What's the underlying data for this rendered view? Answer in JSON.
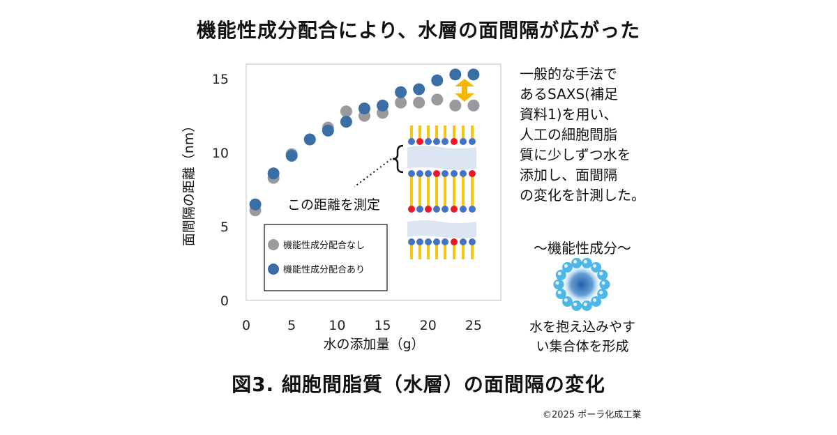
{
  "title": "機能性成分配合により、水層の面間隔が広がった",
  "caption": "図3. 細胞間脂質（水層）の面間隔の変化",
  "copyright": "©2025 ポーラ化成工業",
  "description_lines": [
    "一般的な手法で",
    "あるSAXS(補足",
    "資料1)を用い、",
    "人工の細胞間脂",
    "質に少しずつ水を",
    "添加し、面間隔",
    "の変化を計測した。"
  ],
  "component": {
    "title": "～機能性成分～",
    "desc_lines": [
      "水を抱え込みやす",
      "い集合体を形成"
    ]
  },
  "measure_label": "この距離を測定",
  "colors": {
    "series_without": "#9a9a9e",
    "series_with": "#3a6ea5",
    "lipid_tail": "#f5c518",
    "head_blue": "#4472c4",
    "head_red": "#e8192c",
    "water_layer": "#dbe6f2",
    "arrow": "#f5b800",
    "particle_outer": "#4fb6e8",
    "particle_core": "#1f5fa8"
  },
  "chart_data": {
    "type": "scatter",
    "xlabel": "水の添加量（g）",
    "ylabel": "面間隔の距離（nm）",
    "xlim": [
      0,
      28
    ],
    "ylim": [
      0,
      16
    ],
    "xticks": [
      0,
      5,
      10,
      15,
      20,
      25
    ],
    "yticks": [
      0,
      5,
      10,
      15
    ],
    "grid": false,
    "legend_position": "bottom-left",
    "series": [
      {
        "name": "機能性成分配合なし",
        "x": [
          1,
          3,
          5,
          7,
          9,
          11,
          13,
          15,
          17,
          19,
          21,
          23,
          25
        ],
        "y": [
          6.1,
          8.3,
          9.9,
          10.9,
          11.7,
          12.8,
          12.5,
          12.7,
          13.4,
          13.4,
          13.6,
          13.2,
          13.2
        ]
      },
      {
        "name": "機能性成分配合あり",
        "x": [
          1,
          3,
          5,
          7,
          9,
          11,
          13,
          15,
          17,
          19,
          21,
          23,
          25
        ],
        "y": [
          6.5,
          8.6,
          9.8,
          10.9,
          11.5,
          12.1,
          13.0,
          13.2,
          14.1,
          14.3,
          14.9,
          15.3,
          15.3
        ]
      }
    ]
  }
}
